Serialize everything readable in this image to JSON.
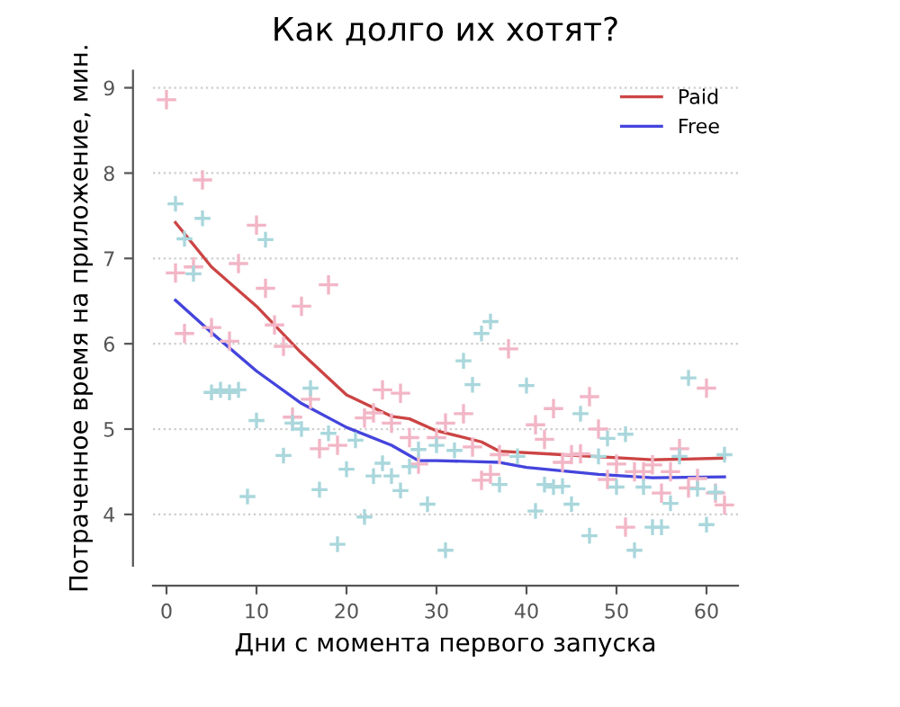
{
  "chart_data": {
    "type": "scatter",
    "title": "Как долго их хотят?",
    "xlabel": "Дни с момента первого запуска",
    "ylabel": "Потраченное время на приложение, мин.",
    "xlim": [
      -1.5,
      63.5
    ],
    "ylim": [
      3.4,
      9.2
    ],
    "xticks": [
      0,
      10,
      20,
      30,
      40,
      50,
      60
    ],
    "yticks": [
      4,
      5,
      6,
      7,
      8,
      9
    ],
    "grid": "y",
    "legend": "top right",
    "marker": "cross",
    "series": [
      {
        "color": "#f2b6c6",
        "x": [
          0,
          4,
          1,
          2,
          3,
          5,
          7,
          8,
          10,
          11,
          12,
          13,
          14,
          15,
          16,
          17,
          18,
          19,
          22,
          23,
          24,
          25,
          26,
          27,
          28,
          30,
          31,
          33,
          34,
          35,
          36,
          37,
          38,
          41,
          42,
          43,
          44,
          45,
          46,
          47,
          48,
          49,
          50,
          51,
          52,
          53,
          54,
          55,
          56,
          57,
          58,
          59,
          60,
          61,
          62
        ],
        "values": [
          8.86,
          7.92,
          6.83,
          6.12,
          6.9,
          6.19,
          6.03,
          6.94,
          7.39,
          6.65,
          6.22,
          5.97,
          5.14,
          6.44,
          5.35,
          4.77,
          6.69,
          4.81,
          5.13,
          5.19,
          5.46,
          5.07,
          5.42,
          4.9,
          4.59,
          4.9,
          5.07,
          5.18,
          4.79,
          4.4,
          4.47,
          4.7,
          5.94,
          5.05,
          4.88,
          5.24,
          4.61,
          4.7,
          4.71,
          5.38,
          5.0,
          4.41,
          4.59,
          3.85,
          4.5,
          4.5,
          4.58,
          4.25,
          4.5,
          4.77,
          4.31,
          4.42,
          5.48,
          4.25,
          4.11
        ]
      },
      {
        "color": "#a9d7dc",
        "x": [
          1,
          2,
          3,
          4,
          5,
          6,
          7,
          8,
          9,
          10,
          11,
          13,
          14,
          15,
          16,
          17,
          18,
          19,
          20,
          21,
          22,
          23,
          24,
          25,
          26,
          27,
          28,
          29,
          30,
          31,
          32,
          33,
          34,
          35,
          36,
          37,
          39,
          40,
          41,
          42,
          43,
          44,
          45,
          46,
          47,
          48,
          49,
          50,
          51,
          52,
          53,
          54,
          55,
          56,
          57,
          58,
          59,
          60,
          61,
          62
        ],
        "values": [
          7.64,
          7.23,
          6.82,
          7.47,
          5.43,
          5.46,
          5.43,
          5.46,
          4.21,
          5.1,
          7.22,
          4.69,
          5.07,
          5.0,
          5.48,
          4.29,
          4.95,
          3.65,
          4.53,
          4.87,
          3.97,
          4.45,
          4.6,
          4.45,
          4.28,
          4.56,
          4.76,
          4.12,
          4.81,
          3.58,
          4.75,
          5.8,
          5.52,
          6.12,
          6.26,
          4.35,
          4.68,
          5.51,
          4.04,
          4.35,
          4.32,
          4.33,
          4.12,
          5.18,
          3.75,
          4.68,
          4.89,
          4.32,
          4.94,
          3.58,
          4.32,
          3.85,
          3.85,
          4.13,
          4.68,
          5.6,
          4.3,
          3.88,
          4.26,
          4.7
        ]
      },
      {
        "type": "line",
        "name": "Paid",
        "color": "#cc4444",
        "marker": "none",
        "x": [
          1,
          5,
          10,
          15,
          20,
          25,
          27,
          30,
          35,
          37,
          44,
          54,
          62
        ],
        "values": [
          7.42,
          6.9,
          6.44,
          5.89,
          5.4,
          5.15,
          5.12,
          4.98,
          4.85,
          4.74,
          4.7,
          4.64,
          4.66
        ]
      },
      {
        "type": "line",
        "name": "Free",
        "color": "#4444dd",
        "marker": "none",
        "x": [
          1,
          5,
          10,
          15,
          20,
          25,
          28,
          30,
          34,
          37,
          40,
          48,
          54,
          62
        ],
        "values": [
          6.51,
          6.13,
          5.68,
          5.3,
          5.02,
          4.81,
          4.63,
          4.63,
          4.62,
          4.61,
          4.55,
          4.47,
          4.43,
          4.44
        ]
      }
    ]
  }
}
